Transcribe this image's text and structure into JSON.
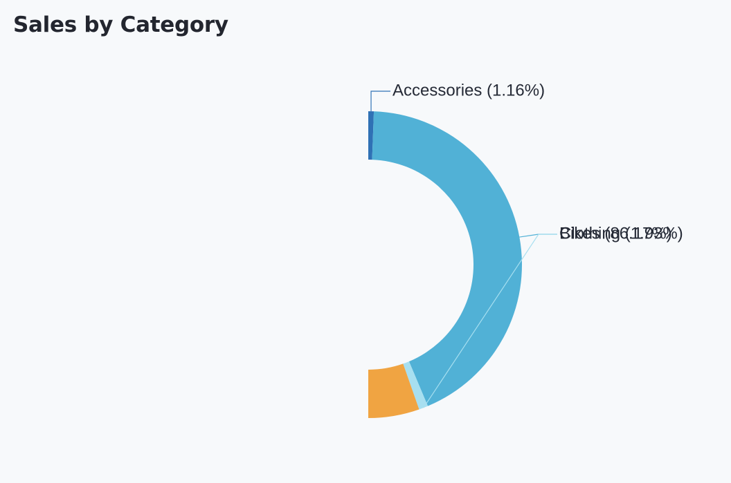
{
  "chart_data": {
    "type": "pie",
    "variant": "half-donut",
    "title": "Sales by Category",
    "slices": [
      {
        "name": "Accessories",
        "percent": 1.16,
        "label": "Accessories (1.16%)",
        "color": "#2f71b5"
      },
      {
        "name": "Bikes",
        "percent": 86.17,
        "label": "Bikes (86.17%)",
        "color": "#51b1d6"
      },
      {
        "name": "Clothing",
        "percent": 1.93,
        "label": "Clothing (1.93%)",
        "color": "#a7dff0"
      },
      {
        "name": "",
        "percent": 10.74,
        "label": "",
        "color": "#f0a442"
      }
    ],
    "legend": "none"
  }
}
